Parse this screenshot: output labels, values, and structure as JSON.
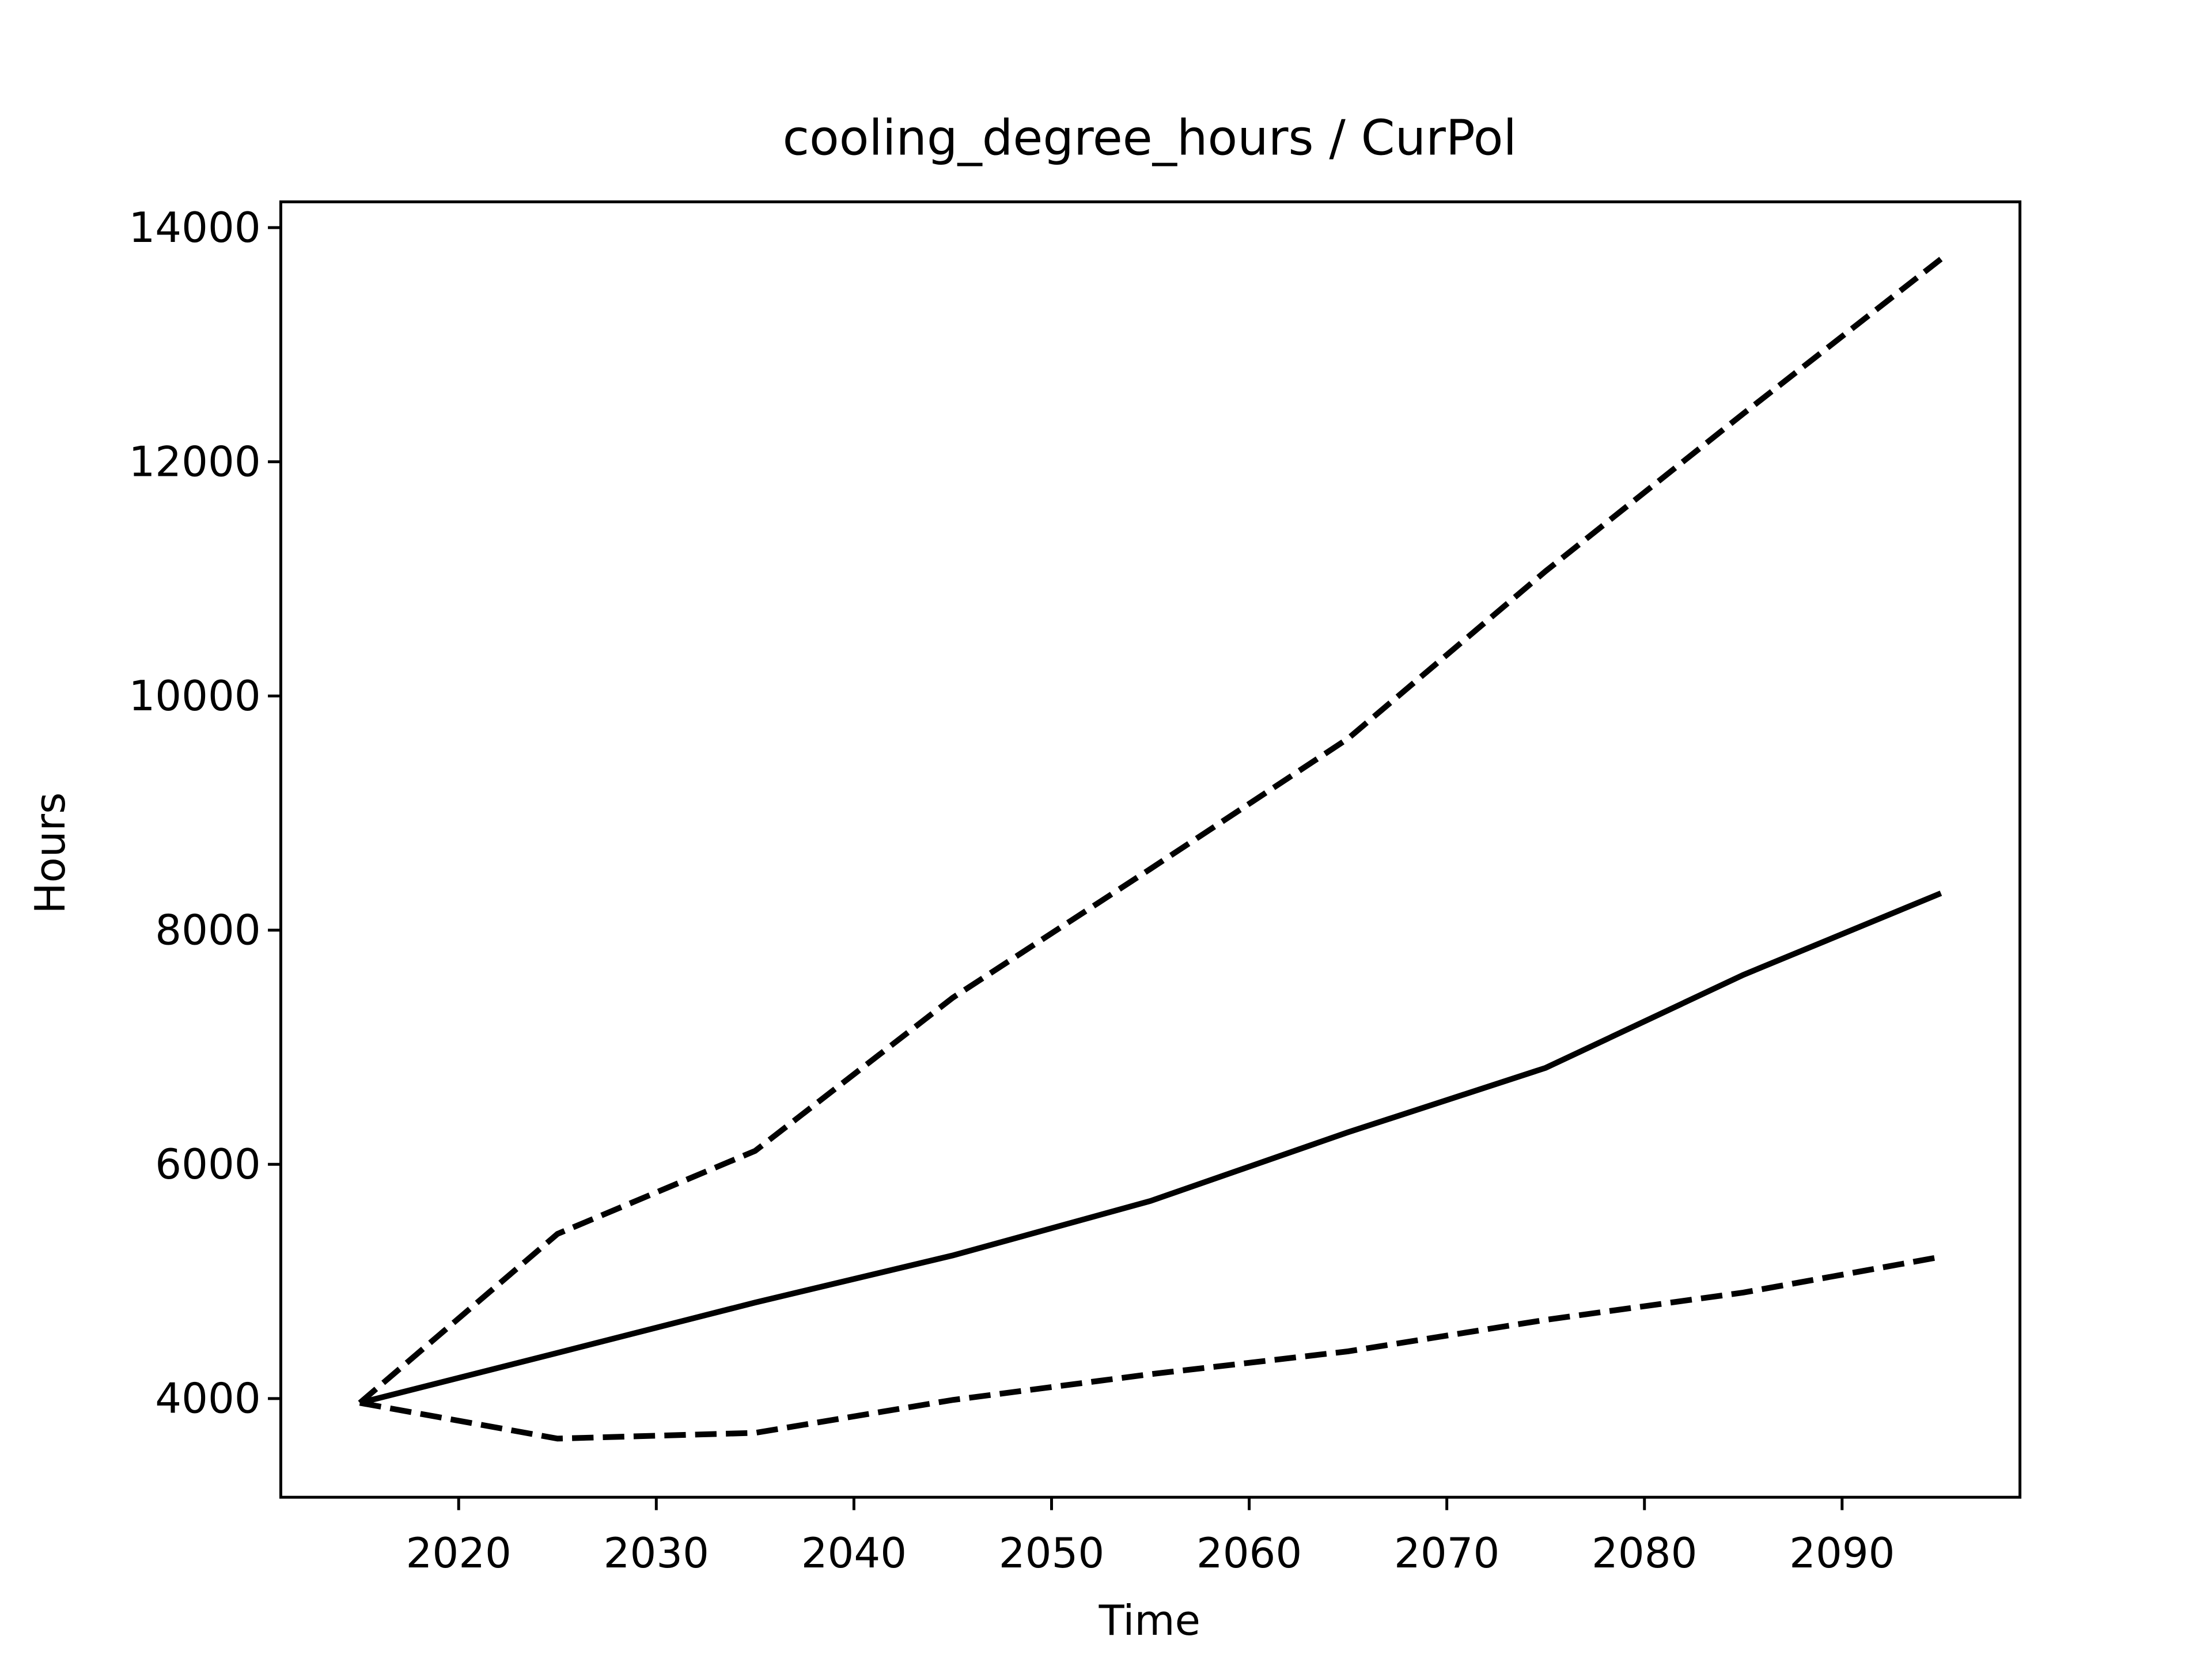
{
  "chart_data": {
    "type": "line",
    "title": "cooling_degree_hours / CurPol",
    "x_label": "Time",
    "y_label": "Hours",
    "x": [
      2015,
      2025,
      2035,
      2045,
      2055,
      2065,
      2075,
      2085,
      2095
    ],
    "series": [
      {
        "color": "#000000",
        "linestyle": "solid",
        "values": [
          3963,
          4390,
          4820,
          5222,
          5687,
          6274,
          6824,
          7618,
          8315
        ]
      },
      {
        "color": "#000000",
        "linestyle": "dashed",
        "values": [
          3963,
          5406,
          6115,
          7423,
          8523,
          9636,
          11066,
          12411,
          13731
        ]
      },
      {
        "color": "#000000",
        "linestyle": "dashed",
        "values": [
          3963,
          3658,
          3707,
          3988,
          4208,
          4403,
          4672,
          4905,
          5210
        ]
      }
    ],
    "xlim": [
      2011,
      2099
    ],
    "xticks": [
      2020,
      2030,
      2040,
      2050,
      2060,
      2070,
      2080,
      2090
    ],
    "ylim": [
      3157,
      14220
    ],
    "yticks": [
      4000,
      6000,
      8000,
      10000,
      12000,
      14000
    ],
    "grid": false
  }
}
